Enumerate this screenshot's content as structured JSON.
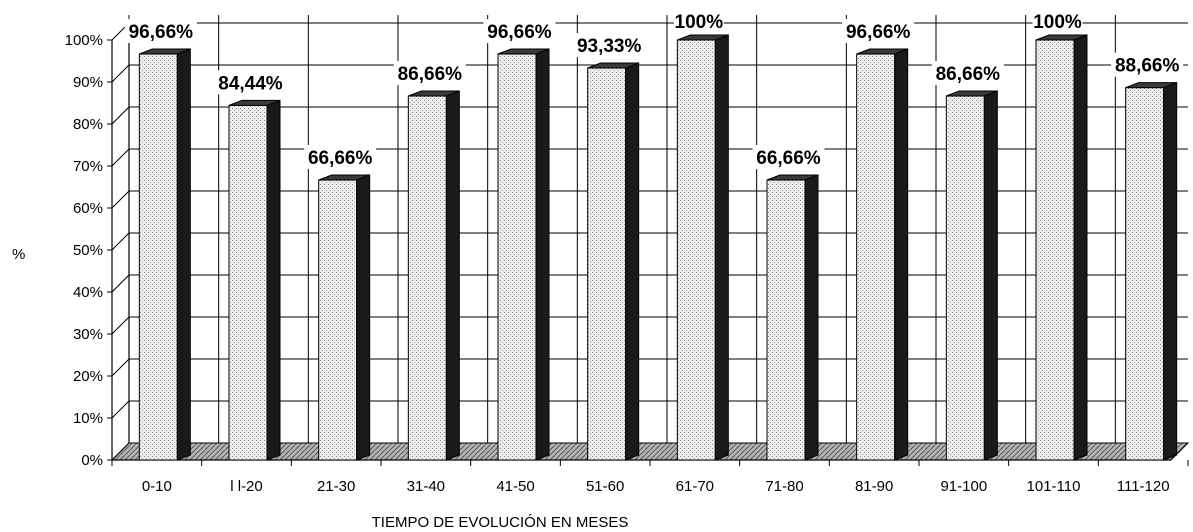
{
  "chart_data": {
    "type": "bar",
    "xlabel": "TIEMPO DE EVOLUCIÓN EN MESES",
    "ylabel": "%",
    "ylim": [
      0,
      100
    ],
    "yticks": [
      "0%",
      "10%",
      "20%",
      "30%",
      "40%",
      "50%",
      "60%",
      "70%",
      "80%",
      "90%",
      "100%"
    ],
    "grid": true,
    "categories": [
      "0-10",
      "l l-20",
      "21-30",
      "31-40",
      "41-50",
      "51-60",
      "61-70",
      "71-80",
      "81-90",
      "91-100",
      "101-110",
      "111-120"
    ],
    "values": [
      96.66,
      84.44,
      66.66,
      86.66,
      96.66,
      93.33,
      100,
      66.66,
      96.66,
      86.66,
      100,
      88.66
    ],
    "data_labels": [
      "96,66%",
      "84,44%",
      "66,66%",
      "86,66%",
      "96,66%",
      "93,33%",
      "100%",
      "66,66%",
      "96,66%",
      "86,66%",
      "100%",
      "88,66%"
    ],
    "colors": {
      "bar_front": "#e6e6e6",
      "bar_side": "#1a1a1a",
      "floor": "#9a9a9a",
      "grid": "#000000"
    }
  }
}
